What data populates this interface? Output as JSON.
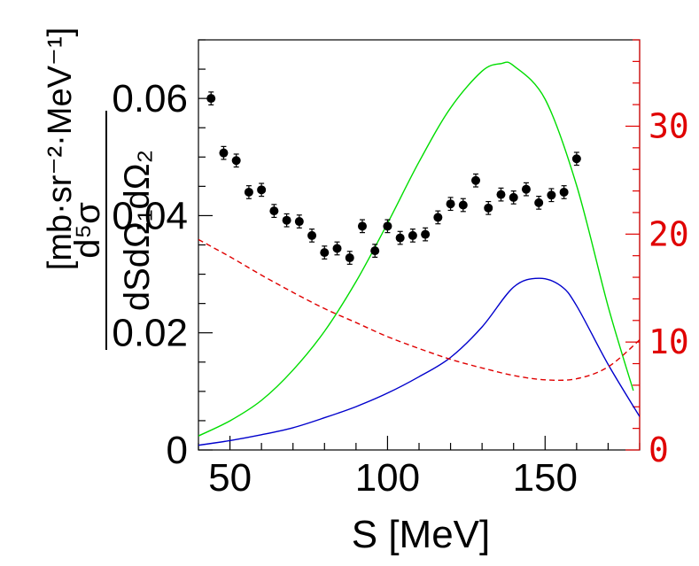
{
  "chart_data": {
    "type": "scatter",
    "xlabel": "S [MeV]",
    "ylabel_unit": "[mb·sr⁻²·MeV⁻¹]",
    "ylabel_numerator": "d⁵σ",
    "ylabel_denominator": "dSdΩ₁dΩ₂",
    "xlim": [
      40,
      180
    ],
    "ylim": [
      0,
      0.07
    ],
    "y2lim": [
      0,
      38
    ],
    "x_ticks": [
      50,
      100,
      150
    ],
    "y_ticks": [
      0,
      0.02,
      0.04,
      0.06
    ],
    "y_tick_labels": [
      "0",
      "0.02",
      "0.04",
      "0.06"
    ],
    "y2_ticks": [
      0,
      10,
      20,
      30
    ],
    "y2_tick_labels": [
      "0",
      "10",
      "20",
      "30"
    ],
    "colors": {
      "data": "#000000",
      "green": "#00dd00",
      "blue": "#0000cc",
      "red_dashed": "#e00000",
      "right_axis": "#e00000"
    },
    "series": [
      {
        "style": "points-with-errors",
        "axis": "left",
        "x": [
          44,
          48,
          52,
          56,
          60,
          64,
          68,
          72,
          76,
          80,
          84,
          88,
          92,
          96,
          100,
          104,
          108,
          112,
          116,
          120,
          124,
          128,
          132,
          136,
          140,
          144,
          148,
          152,
          156,
          160
        ],
        "y": [
          0.06,
          0.0507,
          0.0494,
          0.044,
          0.0444,
          0.0408,
          0.0392,
          0.039,
          0.0366,
          0.0337,
          0.0344,
          0.0328,
          0.0382,
          0.034,
          0.0382,
          0.0362,
          0.0366,
          0.0368,
          0.0397,
          0.042,
          0.0418,
          0.046,
          0.0413,
          0.0436,
          0.0431,
          0.0445,
          0.0422,
          0.0435,
          0.044,
          0.0497
        ],
        "err": [
          0.0011,
          0.0011,
          0.0011,
          0.0011,
          0.0011,
          0.0011,
          0.0011,
          0.0011,
          0.0011,
          0.0011,
          0.0011,
          0.0011,
          0.0011,
          0.0011,
          0.0011,
          0.0011,
          0.0011,
          0.0011,
          0.0011,
          0.0011,
          0.0011,
          0.0011,
          0.0011,
          0.0011,
          0.0011,
          0.0011,
          0.0011,
          0.0011,
          0.0011,
          0.0011
        ]
      },
      {
        "style": "line",
        "axis": "right",
        "color": "green",
        "x": [
          40,
          50,
          60,
          70,
          80,
          90,
          100,
          110,
          120,
          130,
          136,
          140,
          150,
          160,
          170,
          178
        ],
        "y": [
          1.3,
          2.7,
          4.6,
          7.4,
          11.0,
          15.6,
          21.0,
          26.7,
          31.7,
          35.1,
          35.8,
          35.6,
          32.5,
          24.5,
          13.3,
          5.5
        ]
      },
      {
        "style": "line",
        "axis": "left",
        "color": "blue",
        "x": [
          40,
          50,
          60,
          70,
          80,
          90,
          100,
          110,
          120,
          130,
          140,
          148,
          155,
          160,
          170,
          180
        ],
        "y": [
          0.0008,
          0.0016,
          0.0026,
          0.0038,
          0.0055,
          0.0074,
          0.0097,
          0.0125,
          0.0158,
          0.021,
          0.0278,
          0.0293,
          0.028,
          0.0246,
          0.0146,
          0.0057
        ]
      },
      {
        "style": "dashed-line",
        "axis": "right",
        "color": "red_dashed",
        "x": [
          40,
          50,
          60,
          70,
          80,
          90,
          100,
          110,
          120,
          130,
          140,
          150,
          160,
          170,
          180
        ],
        "y": [
          19.5,
          17.9,
          16.2,
          14.6,
          13.1,
          11.8,
          10.5,
          9.4,
          8.4,
          7.6,
          6.9,
          6.5,
          6.6,
          7.7,
          10.2
        ]
      }
    ]
  }
}
